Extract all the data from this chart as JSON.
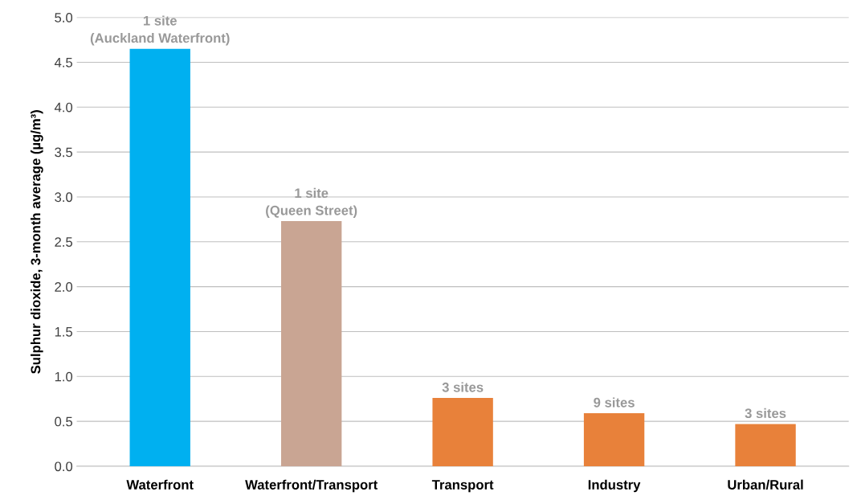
{
  "chart_data": {
    "type": "bar",
    "ylabel": "Sulphur dioxide, 3-month average (µg/m³)",
    "categories": [
      "Waterfront",
      "Waterfront/Transport",
      "Transport",
      "Industry",
      "Urban/Rural"
    ],
    "values": [
      4.65,
      2.73,
      0.76,
      0.59,
      0.47
    ],
    "colors": [
      "#00b0f0",
      "#c9a593",
      "#e8813a",
      "#e8813a",
      "#e8813a"
    ],
    "annotations": [
      {
        "text": "1 site\n(Auckland Waterfront)",
        "x": "Waterfront",
        "y": 4.65
      },
      {
        "text": "1 site\n(Queen Street)",
        "x": "Waterfront/Transport",
        "y": 2.73
      },
      {
        "text": "3 sites",
        "x": "Transport",
        "y": 0.76
      },
      {
        "text": "9 sites",
        "x": "Industry",
        "y": 0.59
      },
      {
        "text": "3 sites",
        "x": "Urban/Rural",
        "y": 0.47
      }
    ],
    "ylim": [
      0,
      5.0
    ],
    "yticks": [
      {
        "value": 0,
        "label": "0.0"
      },
      {
        "value": 0.5,
        "label": "0.5"
      },
      {
        "value": 1,
        "label": "1.0"
      },
      {
        "value": 1.5,
        "label": "1.5"
      },
      {
        "value": 2,
        "label": "2.0"
      },
      {
        "value": 2.5,
        "label": "2.5"
      },
      {
        "value": 3,
        "label": "3.0"
      },
      {
        "value": 3.5,
        "label": "3.5"
      },
      {
        "value": 4,
        "label": "4.0"
      },
      {
        "value": 4.5,
        "label": "4.5"
      },
      {
        "value": 5,
        "label": "5.0"
      }
    ],
    "grid": "y"
  }
}
